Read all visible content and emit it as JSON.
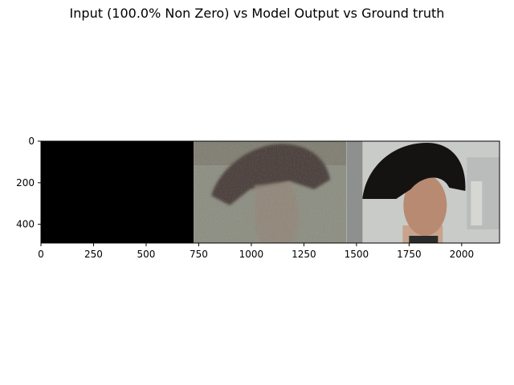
{
  "figure": {
    "title": "Input (100.0% Non Zero) vs Model Output vs Ground truth"
  },
  "chart_data": {
    "type": "image",
    "title": "Input (100.0% Non Zero) vs Model Output vs Ground truth",
    "xlabel": "",
    "ylabel": "",
    "xlim": [
      0,
      2180
    ],
    "ylim": [
      490,
      0
    ],
    "x_ticks": [
      0,
      250,
      500,
      750,
      1000,
      1250,
      1500,
      1750,
      2000
    ],
    "y_ticks": [
      0,
      200,
      400
    ],
    "grid": false,
    "panels": [
      {
        "name": "Input",
        "x_start": 0,
        "x_end": 726,
        "content": "all black"
      },
      {
        "name": "Model Output",
        "x_start": 726,
        "x_end": 1452,
        "content": "noisy reconstruction of mannequin head with dark hair"
      },
      {
        "name": "Ground truth",
        "x_start": 1452,
        "x_end": 2180,
        "content": "mannequin head with dark wig against light background"
      }
    ],
    "colors": {
      "input": "#000000",
      "output_bg": "#86887a",
      "output_hair": "#3a2f2a",
      "truth_bg": "#c9cbc8",
      "truth_hair": "#151312",
      "truth_skin": "#b98a72"
    }
  }
}
